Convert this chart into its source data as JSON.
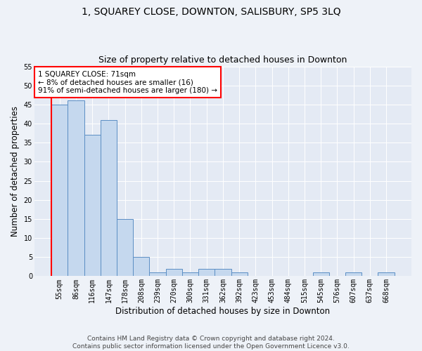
{
  "title": "1, SQUAREY CLOSE, DOWNTON, SALISBURY, SP5 3LQ",
  "subtitle": "Size of property relative to detached houses in Downton",
  "xlabel": "Distribution of detached houses by size in Downton",
  "ylabel": "Number of detached properties",
  "categories": [
    "55sqm",
    "86sqm",
    "116sqm",
    "147sqm",
    "178sqm",
    "208sqm",
    "239sqm",
    "270sqm",
    "300sqm",
    "331sqm",
    "362sqm",
    "392sqm",
    "423sqm",
    "453sqm",
    "484sqm",
    "515sqm",
    "545sqm",
    "576sqm",
    "607sqm",
    "637sqm",
    "668sqm"
  ],
  "values": [
    45,
    46,
    37,
    41,
    15,
    5,
    1,
    2,
    1,
    2,
    2,
    1,
    0,
    0,
    0,
    0,
    1,
    0,
    1,
    0,
    1
  ],
  "bar_color": "#c5d8ee",
  "bar_edge_color": "#5b8ec4",
  "annotation_text": "1 SQUAREY CLOSE: 71sqm\n← 8% of detached houses are smaller (16)\n91% of semi-detached houses are larger (180) →",
  "footer_line1": "Contains HM Land Registry data © Crown copyright and database right 2024.",
  "footer_line2": "Contains public sector information licensed under the Open Government Licence v3.0.",
  "ylim": [
    0,
    55
  ],
  "background_color": "#eef2f8",
  "plot_bg_color": "#e4eaf4",
  "title_fontsize": 10,
  "subtitle_fontsize": 9,
  "ylabel_fontsize": 8.5,
  "xlabel_fontsize": 8.5,
  "tick_fontsize": 7,
  "annotation_fontsize": 7.5,
  "footer_fontsize": 6.5
}
